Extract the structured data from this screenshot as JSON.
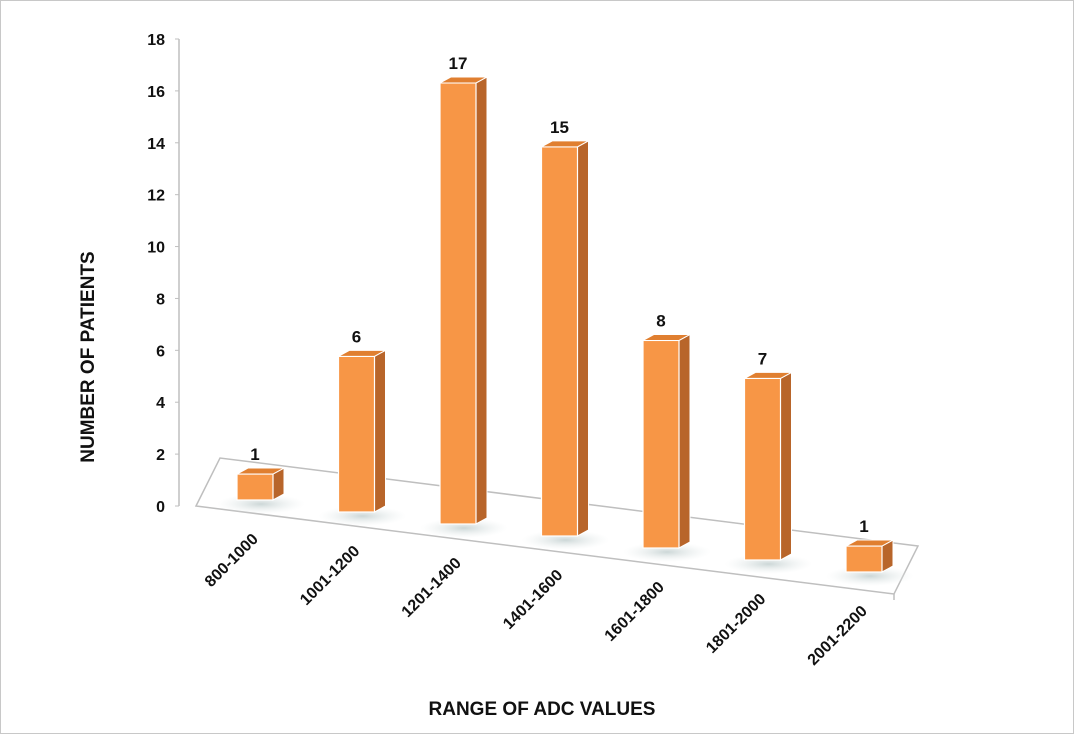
{
  "chart_data": {
    "type": "bar",
    "style": "3d-column",
    "categories": [
      "800-1000",
      "1001-1200",
      "1201-1400",
      "1401-1600",
      "1601-1800",
      "1801-2000",
      "2001-2200"
    ],
    "values": [
      1,
      6,
      17,
      15,
      8,
      7,
      1
    ],
    "data_labels": [
      "1",
      "6",
      "17",
      "15",
      "8",
      "7",
      "1"
    ],
    "xlabel": "RANGE OF ADC VALUES",
    "ylabel": "NUMBER OF PATIENTS",
    "ylim": [
      0,
      18
    ],
    "yticks": [
      0,
      2,
      4,
      6,
      8,
      10,
      12,
      14,
      16,
      18
    ],
    "grid": false,
    "legend": "none",
    "colors": {
      "bar_front": "#f79646",
      "bar_side": "#b8652a",
      "bar_top": "#e07f30",
      "floor_shadow": "#cfd8d8",
      "axis": "#bfbfbf"
    }
  }
}
